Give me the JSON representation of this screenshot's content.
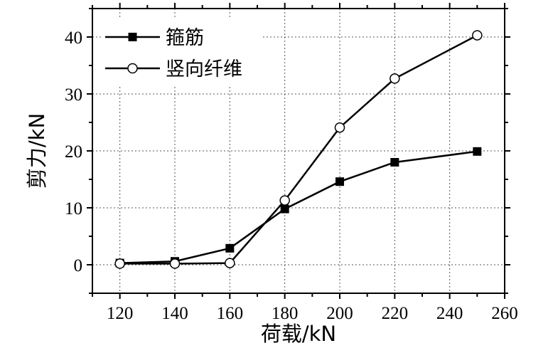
{
  "chart_data": {
    "type": "line",
    "xlabel": "荷载/kN",
    "ylabel": "剪力/kN",
    "xlim": [
      110,
      260
    ],
    "ylim": [
      -5,
      45
    ],
    "x_ticks": [
      120,
      140,
      160,
      180,
      200,
      220,
      240,
      260
    ],
    "y_ticks": [
      0,
      10,
      20,
      30,
      40
    ],
    "grid": true,
    "legend_position": "top-left",
    "series": [
      {
        "name": "箍筋",
        "marker": "filled-square",
        "color": "#000000",
        "x": [
          120,
          140,
          160,
          180,
          200,
          220,
          250
        ],
        "y": [
          0.3,
          0.6,
          2.9,
          9.8,
          14.6,
          18.0,
          19.9
        ]
      },
      {
        "name": "竖向纤维",
        "marker": "open-circle",
        "color": "#000000",
        "x": [
          120,
          140,
          160,
          180,
          200,
          220,
          250
        ],
        "y": [
          0.2,
          0.2,
          0.3,
          11.3,
          24.1,
          32.7,
          40.3
        ]
      }
    ]
  }
}
